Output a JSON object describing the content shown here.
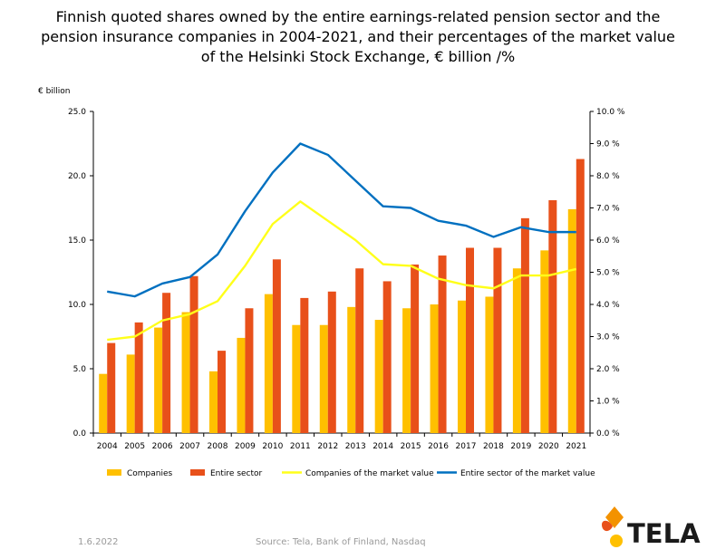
{
  "chart_data": {
    "type": "bar",
    "title": "Finnish quoted shares owned by the entire earnings-related pension sector and the pension insurance companies in 2004-2021, and their percentages of the market value of the Helsinki Stock Exchange, € billion /%",
    "ylabel": "€ billion",
    "categories": [
      "2004",
      "2005",
      "2006",
      "2007",
      "2008",
      "2009",
      "2010",
      "2011",
      "2012",
      "2013",
      "2014",
      "2015",
      "2016",
      "2017",
      "2018",
      "2019",
      "2020",
      "2021"
    ],
    "ylim": [
      0,
      25
    ],
    "yticks": [
      "0.0",
      "5.0",
      "10.0",
      "15.0",
      "20.0",
      "25.0"
    ],
    "y2lim": [
      0,
      10
    ],
    "y2ticks": [
      "0.0 %",
      "1.0 %",
      "2.0 %",
      "3.0 %",
      "4.0 %",
      "5.0 %",
      "6.0 %",
      "7.0 %",
      "8.0 %",
      "9.0 %",
      "10.0 %"
    ],
    "grid": false,
    "legend_position": "bottom",
    "series": [
      {
        "name": "Companies",
        "kind": "bar",
        "axis": "left",
        "color": "#FFC000",
        "values": [
          4.6,
          6.1,
          8.2,
          9.4,
          4.8,
          7.4,
          10.8,
          8.4,
          8.4,
          9.8,
          8.8,
          9.7,
          10.0,
          10.3,
          10.6,
          12.8,
          14.2,
          17.4
        ]
      },
      {
        "name": "Entire sector",
        "kind": "bar",
        "axis": "left",
        "color": "#E8501A",
        "values": [
          7.0,
          8.6,
          10.9,
          12.2,
          6.4,
          9.7,
          13.5,
          10.5,
          11.0,
          12.8,
          11.8,
          13.1,
          13.8,
          14.4,
          14.4,
          16.7,
          18.1,
          21.3
        ]
      },
      {
        "name": "Companies of the market value",
        "kind": "line",
        "axis": "right",
        "color": "#FFFF1A",
        "values": [
          2.9,
          3.0,
          3.5,
          3.7,
          4.1,
          5.2,
          6.5,
          7.2,
          6.6,
          6.0,
          5.25,
          5.2,
          4.8,
          4.6,
          4.5,
          4.9,
          4.9,
          5.1
        ]
      },
      {
        "name": "Entire sector of the market value",
        "kind": "line",
        "axis": "right",
        "color": "#0070C0",
        "values": [
          4.4,
          4.25,
          4.65,
          4.85,
          5.55,
          6.9,
          8.1,
          9.0,
          8.65,
          7.85,
          7.05,
          7.0,
          6.6,
          6.45,
          6.1,
          6.4,
          6.25,
          6.25
        ]
      }
    ]
  },
  "footer": {
    "date": "1.6.2022",
    "source": "Source: Tela, Bank of Finland, Nasdaq"
  },
  "logo": {
    "text": "TELA",
    "colors": [
      "#F39200",
      "#E8501A",
      "#FFC000"
    ]
  }
}
